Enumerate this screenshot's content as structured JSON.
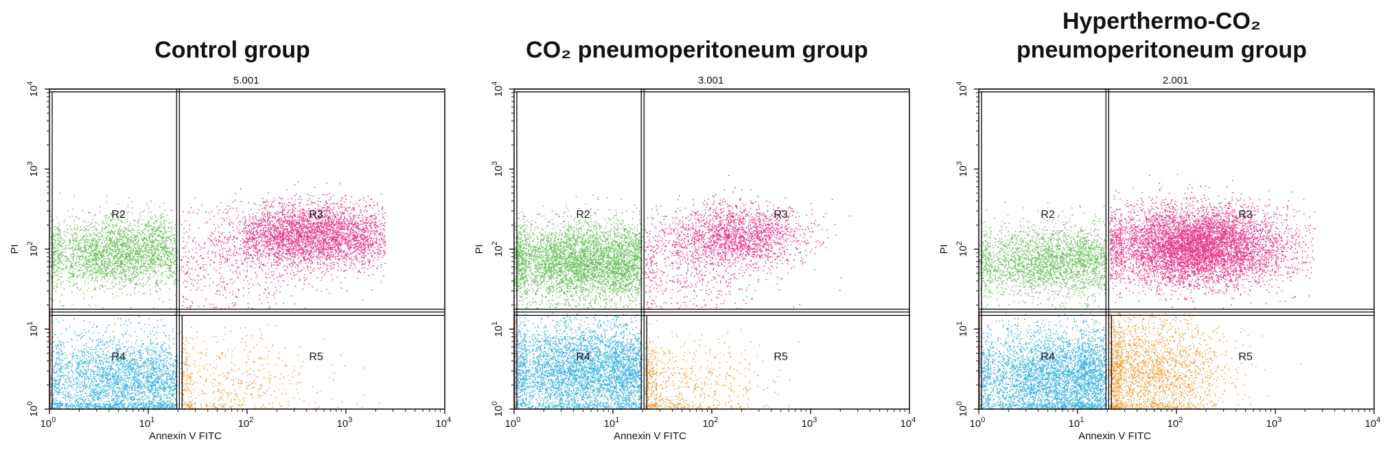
{
  "colors": {
    "R2": "#57b947",
    "R3": "#e5197a",
    "R4": "#1fa8dd",
    "R5": "#ef8f1d",
    "gate_edge": "#c0392b",
    "axis": "#111111"
  },
  "chart_data": [
    {
      "type": "scatter",
      "title_lines": [
        "Control group"
      ],
      "header_value": "5.001",
      "xlabel": "Annexin V FITC",
      "ylabel": "PI",
      "xscale": "log",
      "yscale": "log",
      "xlim": [
        1,
        10000
      ],
      "ylim": [
        1,
        10000
      ],
      "x_ticks": [
        {
          "base": "10",
          "exp": "0"
        },
        {
          "base": "10",
          "exp": "1"
        },
        {
          "base": "10",
          "exp": "2"
        },
        {
          "base": "10",
          "exp": "3"
        },
        {
          "base": "10",
          "exp": "4"
        }
      ],
      "y_ticks": [
        {
          "base": "10",
          "exp": "0"
        },
        {
          "base": "10",
          "exp": "1"
        },
        {
          "base": "10",
          "exp": "2"
        },
        {
          "base": "10",
          "exp": "3"
        },
        {
          "base": "10",
          "exp": "4"
        }
      ],
      "quadrant_thresholds": {
        "x": 20,
        "y": 17
      },
      "regions": [
        {
          "name": "R2",
          "label_x": 5,
          "label_y": 270
        },
        {
          "name": "R3",
          "label_x": 500,
          "label_y": 270
        },
        {
          "name": "R4",
          "label_x": 5,
          "label_y": 4.5
        },
        {
          "name": "R5",
          "label_x": 500,
          "label_y": 4.5
        }
      ],
      "populations": [
        {
          "region": "R2",
          "n": 2600,
          "cx": 5,
          "cy": 90,
          "sx": 0.42,
          "sy": 0.22,
          "xr": [
            1,
            19.5
          ],
          "yr": [
            18,
            600
          ]
        },
        {
          "region": "R3",
          "n": 3400,
          "cx": 420,
          "cy": 150,
          "sx": 0.42,
          "sy": 0.2,
          "xr": [
            21,
            2500
          ],
          "yr": [
            18,
            900
          ]
        },
        {
          "region": "R3",
          "n": 400,
          "cx": 80,
          "cy": 60,
          "sx": 0.45,
          "sy": 0.3,
          "xr": [
            21,
            2500
          ],
          "yr": [
            18,
            900
          ]
        },
        {
          "region": "R4",
          "n": 3000,
          "cx": 5,
          "cy": 2.2,
          "sx": 0.45,
          "sy": 0.3,
          "xr": [
            1,
            19.5
          ],
          "yr": [
            1,
            16
          ]
        },
        {
          "region": "R5",
          "n": 550,
          "cx": 60,
          "cy": 2.2,
          "sx": 0.5,
          "sy": 0.32,
          "xr": [
            21,
            2500
          ],
          "yr": [
            1,
            16
          ]
        }
      ]
    },
    {
      "type": "scatter",
      "title_lines": [
        "CO₂  pneumoperitoneum group"
      ],
      "header_value": "3.001",
      "xlabel": "Annexin V FITC",
      "ylabel": "PI",
      "xscale": "log",
      "yscale": "log",
      "xlim": [
        1,
        10000
      ],
      "ylim": [
        1,
        10000
      ],
      "x_ticks": [
        {
          "base": "10",
          "exp": "0"
        },
        {
          "base": "10",
          "exp": "1"
        },
        {
          "base": "10",
          "exp": "2"
        },
        {
          "base": "10",
          "exp": "3"
        },
        {
          "base": "10",
          "exp": "4"
        }
      ],
      "y_ticks": [
        {
          "base": "10",
          "exp": "0"
        },
        {
          "base": "10",
          "exp": "1"
        },
        {
          "base": "10",
          "exp": "2"
        },
        {
          "base": "10",
          "exp": "3"
        },
        {
          "base": "10",
          "exp": "4"
        }
      ],
      "quadrant_thresholds": {
        "x": 20,
        "y": 17
      },
      "regions": [
        {
          "name": "R2",
          "label_x": 5,
          "label_y": 270
        },
        {
          "name": "R3",
          "label_x": 500,
          "label_y": 270
        },
        {
          "name": "R4",
          "label_x": 5,
          "label_y": 4.5
        },
        {
          "name": "R5",
          "label_x": 500,
          "label_y": 4.5
        }
      ],
      "populations": [
        {
          "region": "R2",
          "n": 4200,
          "cx": 5,
          "cy": 70,
          "sx": 0.45,
          "sy": 0.25,
          "xr": [
            1,
            19.5
          ],
          "yr": [
            18,
            600
          ]
        },
        {
          "region": "R3",
          "n": 1800,
          "cx": 180,
          "cy": 150,
          "sx": 0.35,
          "sy": 0.2,
          "xr": [
            21,
            2500
          ],
          "yr": [
            18,
            900
          ]
        },
        {
          "region": "R3",
          "n": 500,
          "cx": 60,
          "cy": 60,
          "sx": 0.4,
          "sy": 0.3,
          "xr": [
            21,
            2500
          ],
          "yr": [
            18,
            900
          ]
        },
        {
          "region": "R4",
          "n": 4200,
          "cx": 5,
          "cy": 3.0,
          "sx": 0.45,
          "sy": 0.3,
          "xr": [
            1,
            19.5
          ],
          "yr": [
            1,
            16
          ]
        },
        {
          "region": "R5",
          "n": 700,
          "cx": 40,
          "cy": 2.0,
          "sx": 0.45,
          "sy": 0.3,
          "xr": [
            21,
            2500
          ],
          "yr": [
            1,
            16
          ]
        }
      ]
    },
    {
      "type": "scatter",
      "title_lines": [
        "Hyperthermo-CO₂",
        "pneumoperitoneum group"
      ],
      "header_value": "2.001",
      "xlabel": "Annexin V FITC",
      "ylabel": "PI",
      "xscale": "log",
      "yscale": "log",
      "xlim": [
        1,
        10000
      ],
      "ylim": [
        1,
        10000
      ],
      "x_ticks": [
        {
          "base": "10",
          "exp": "0"
        },
        {
          "base": "10",
          "exp": "1"
        },
        {
          "base": "10",
          "exp": "2"
        },
        {
          "base": "10",
          "exp": "3"
        },
        {
          "base": "10",
          "exp": "4"
        }
      ],
      "y_ticks": [
        {
          "base": "10",
          "exp": "0"
        },
        {
          "base": "10",
          "exp": "1"
        },
        {
          "base": "10",
          "exp": "2"
        },
        {
          "base": "10",
          "exp": "3"
        },
        {
          "base": "10",
          "exp": "4"
        }
      ],
      "quadrant_thresholds": {
        "x": 20,
        "y": 17
      },
      "regions": [
        {
          "name": "R2",
          "label_x": 5,
          "label_y": 270
        },
        {
          "name": "R3",
          "label_x": 500,
          "label_y": 270
        },
        {
          "name": "R4",
          "label_x": 5,
          "label_y": 4.5
        },
        {
          "name": "R5",
          "label_x": 500,
          "label_y": 4.5
        }
      ],
      "populations": [
        {
          "region": "R2",
          "n": 2400,
          "cx": 5,
          "cy": 70,
          "sx": 0.42,
          "sy": 0.22,
          "xr": [
            1,
            19.5
          ],
          "yr": [
            18,
            600
          ]
        },
        {
          "region": "R3",
          "n": 6500,
          "cx": 160,
          "cy": 110,
          "sx": 0.45,
          "sy": 0.24,
          "xr": [
            21,
            2500
          ],
          "yr": [
            18,
            900
          ]
        },
        {
          "region": "R4",
          "n": 4000,
          "cx": 6,
          "cy": 2.5,
          "sx": 0.45,
          "sy": 0.3,
          "xr": [
            1,
            19.5
          ],
          "yr": [
            1,
            16
          ]
        },
        {
          "region": "R5",
          "n": 2200,
          "cx": 50,
          "cy": 2.8,
          "sx": 0.4,
          "sy": 0.35,
          "xr": [
            21,
            2500
          ],
          "yr": [
            1,
            16
          ]
        }
      ]
    }
  ]
}
